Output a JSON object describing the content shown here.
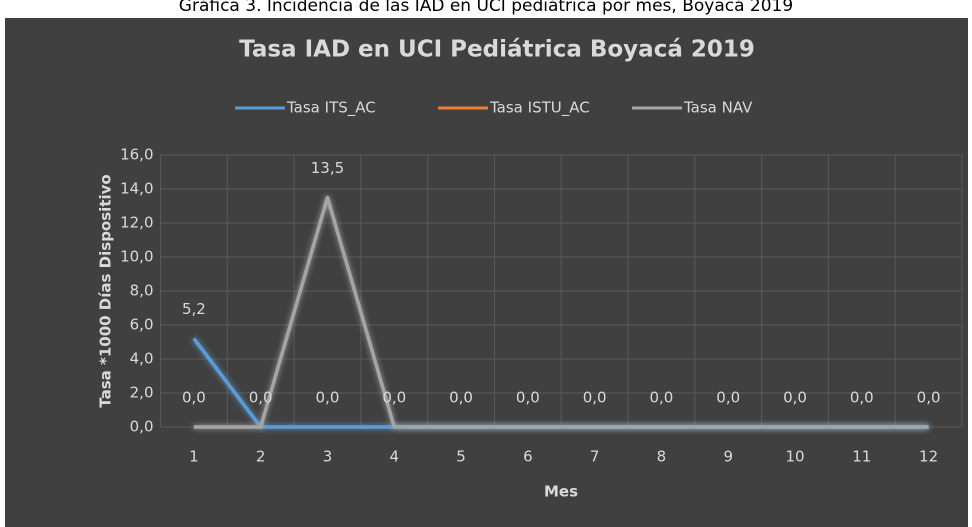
{
  "caption": "Gráfica 3. Incidencia de las IAD en UCI pediátrica por mes, Boyacá 2019",
  "chart_data": {
    "type": "line",
    "title": "Tasa IAD en UCI Pediátrica Boyacá 2019",
    "x_label": "Mes",
    "y_label": "Tasa *1000 Días Dispositivo",
    "categories": [
      "1",
      "2",
      "3",
      "4",
      "5",
      "6",
      "7",
      "8",
      "9",
      "10",
      "11",
      "12"
    ],
    "series": [
      {
        "name": "Tasa ITS_AC",
        "color": "#5b9bd5",
        "values": [
          5.2,
          0,
          0,
          0,
          0,
          0,
          0,
          0,
          0,
          0,
          0,
          0
        ],
        "value_labels": [
          "5,2",
          null,
          null,
          null,
          null,
          null,
          null,
          null,
          null,
          null,
          null,
          null
        ]
      },
      {
        "name": "Tasa ISTU_AC",
        "color": "#ed7d31",
        "values": [
          0,
          0,
          0,
          0,
          0,
          0,
          0,
          0,
          0,
          0,
          0,
          0
        ],
        "value_labels": [
          null,
          null,
          "0,0",
          null,
          null,
          null,
          null,
          null,
          null,
          null,
          null,
          null
        ]
      },
      {
        "name": "Tasa NAV",
        "color": "#a5a5a5",
        "values": [
          0,
          0,
          13.5,
          0,
          0,
          0,
          0,
          0,
          0,
          0,
          0,
          0
        ],
        "value_labels": [
          "0,0",
          "0,0",
          "13,5",
          "0,0",
          "0,0",
          "0,0",
          "0,0",
          "0,0",
          "0,0",
          "0,0",
          "0,0",
          "0,0"
        ]
      }
    ],
    "ylim": [
      0,
      16
    ],
    "yticks": [
      {
        "value": 0,
        "label": "0,0"
      },
      {
        "value": 2,
        "label": "2,0"
      },
      {
        "value": 4,
        "label": "4,0"
      },
      {
        "value": 6,
        "label": "6,0"
      },
      {
        "value": 8,
        "label": "8,0"
      },
      {
        "value": 10,
        "label": "10,0"
      },
      {
        "value": 12,
        "label": "12,0"
      },
      {
        "value": 14,
        "label": "14,0"
      },
      {
        "value": 16,
        "label": "16,0"
      }
    ],
    "grid": true,
    "legend": "top"
  }
}
